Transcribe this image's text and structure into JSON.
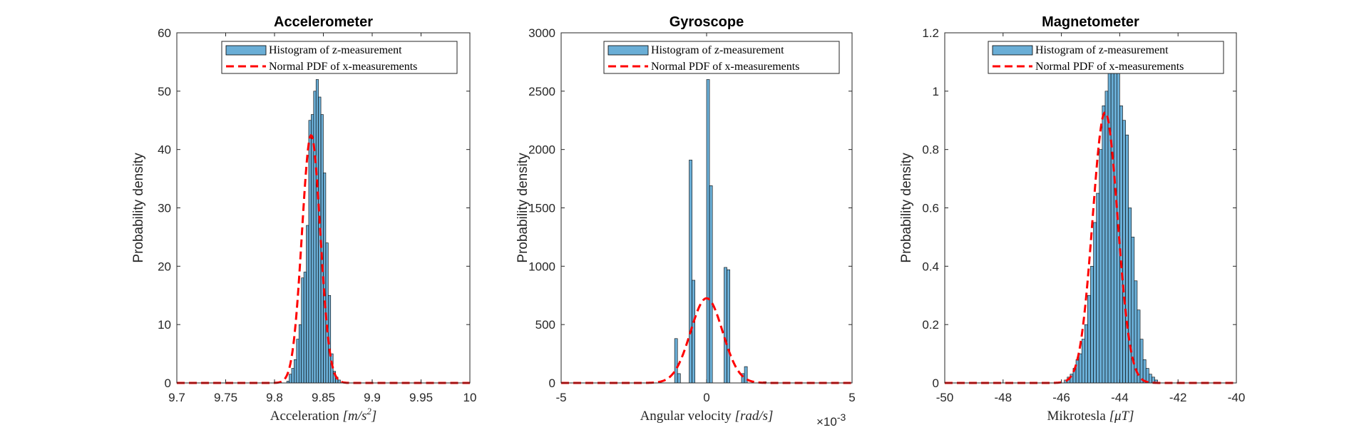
{
  "colors": {
    "bar_fill": "#6aaed6",
    "bar_edge": "#000000",
    "pdf_line": "#ff0000",
    "axis": "#262626"
  },
  "chart_data": [
    {
      "type": "bar",
      "title": "Accelerometer",
      "xlabel": "Acceleration [m/s²]",
      "xlabel_text": "Acceleration",
      "xlabel_unit": "[m/s",
      "xlabel_unit_sup": "2",
      "xlabel_unit_end": "]",
      "ylabel": "Probability density",
      "xlim": [
        9.7,
        10.0
      ],
      "ylim": [
        0,
        60
      ],
      "xticks": [
        9.7,
        9.75,
        9.8,
        9.85,
        9.9,
        9.95,
        10.0
      ],
      "xtick_labels": [
        "9.7",
        "9.75",
        "9.8",
        "9.85",
        "9.9",
        "9.95",
        "10"
      ],
      "yticks": [
        0,
        10,
        20,
        30,
        40,
        50,
        60
      ],
      "ytick_labels": [
        "0",
        "10",
        "20",
        "30",
        "40",
        "50",
        "60"
      ],
      "legend_position": "top-right",
      "legend": [
        "Histogram of z-measurement",
        "Normal PDF of x-measurements"
      ],
      "series": [
        {
          "kind": "histogram",
          "bin_width": 0.0025,
          "bin_start": 9.8125,
          "values": [
            0.3,
            1.5,
            2.5,
            4,
            7.5,
            10,
            18,
            19,
            27,
            45,
            46,
            50,
            52,
            49,
            46,
            36,
            24,
            15,
            5,
            2,
            1,
            0.5
          ]
        },
        {
          "kind": "normal_pdf",
          "mean": 9.8375,
          "std": 0.0094
        }
      ]
    },
    {
      "type": "bar",
      "title": "Gyroscope",
      "xlabel": "Angular velocity [rad/s]",
      "xlabel_text": "Angular velocity",
      "xlabel_unit": "[rad/s]",
      "ylabel": "Probability density",
      "exponent_label": "×10",
      "exponent_power": "-3",
      "xlim": [
        -5,
        5
      ],
      "ylim": [
        0,
        3000
      ],
      "xticks": [
        -5,
        0,
        5
      ],
      "xtick_labels": [
        "-5",
        "0",
        "5"
      ],
      "yticks": [
        0,
        500,
        1000,
        1500,
        2000,
        2500,
        3000
      ],
      "ytick_labels": [
        "0",
        "500",
        "1000",
        "1500",
        "2000",
        "2500",
        "3000"
      ],
      "legend_position": "top-right",
      "legend": [
        "Histogram of z-measurement",
        "Normal PDF of x-measurements"
      ],
      "series": [
        {
          "kind": "histogram",
          "bin_width": 0.1,
          "centers": [
            -1.05,
            -0.95,
            -0.55,
            -0.45,
            0.05,
            0.15,
            0.65,
            0.75,
            1.25,
            1.35,
            2.0
          ],
          "values": [
            380,
            80,
            1910,
            880,
            2600,
            1690,
            990,
            970,
            80,
            140,
            10
          ]
        },
        {
          "kind": "normal_pdf",
          "mean": 0.0,
          "std": 0.00055
        }
      ]
    },
    {
      "type": "bar",
      "title": "Magnetometer",
      "xlabel": "Mikrotesla [μT]",
      "xlabel_text": "Mikrotesla",
      "xlabel_unit": "[μT]",
      "ylabel": "Probability density",
      "xlim": [
        -50,
        -40
      ],
      "ylim": [
        0,
        1.2
      ],
      "xticks": [
        -50,
        -48,
        -46,
        -44,
        -42,
        -40
      ],
      "xtick_labels": [
        "-50",
        "-48",
        "-46",
        "-44",
        "-42",
        "-40"
      ],
      "yticks": [
        0,
        0.2,
        0.4,
        0.6,
        0.8,
        1.0,
        1.2
      ],
      "ytick_labels": [
        "0",
        "0.2",
        "0.4",
        "0.6",
        "0.8",
        "1",
        "1.2"
      ],
      "legend_position": "top-right",
      "legend": [
        "Histogram of z-measurement",
        "Normal PDF of x-measurements"
      ],
      "series": [
        {
          "kind": "histogram",
          "bin_width": 0.1,
          "bin_start": -45.9,
          "values": [
            0.01,
            0.02,
            0.03,
            0.05,
            0.08,
            0.1,
            0.15,
            0.2,
            0.3,
            0.4,
            0.55,
            0.65,
            0.8,
            0.95,
            1.0,
            1.15,
            1.1,
            1.15,
            1.1,
            0.95,
            0.9,
            0.85,
            0.6,
            0.5,
            0.35,
            0.25,
            0.15,
            0.08,
            0.05,
            0.03,
            0.02,
            0.01
          ]
        },
        {
          "kind": "normal_pdf",
          "mean": -44.5,
          "std": 0.43
        }
      ]
    }
  ]
}
